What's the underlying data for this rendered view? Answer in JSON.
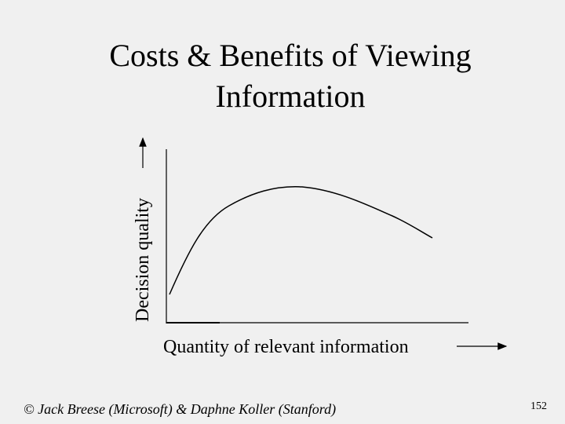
{
  "slide": {
    "title_lines": [
      "Costs & Benefits of Viewing",
      "Information"
    ],
    "y_axis_label": "Decision quality",
    "x_axis_label": "Quantity of relevant information",
    "footer": "© Jack Breese (Microsoft) & Daphne Koller (Stanford)",
    "page_number": "152"
  }
}
